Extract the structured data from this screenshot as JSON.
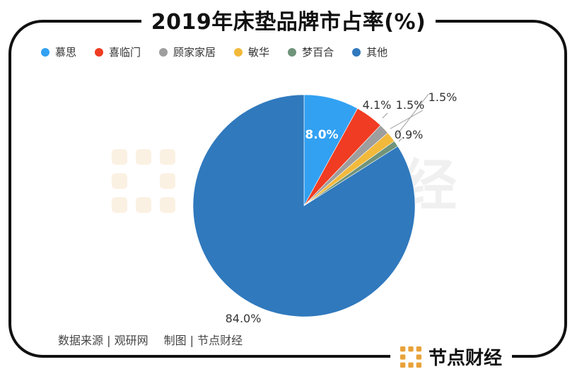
{
  "title": "2019年床垫品牌市占率(%)",
  "legend": [
    {
      "name": "慕思",
      "color": "#32a1f2"
    },
    {
      "name": "喜临门",
      "color": "#f03c22"
    },
    {
      "name": "顾家家居",
      "color": "#9e9e9e"
    },
    {
      "name": "敏华",
      "color": "#f2b93b"
    },
    {
      "name": "梦百合",
      "color": "#70947a"
    },
    {
      "name": "其他",
      "color": "#3079bd"
    }
  ],
  "source": "数据来源 | 观研网",
  "credit": "制图 | 节点财经",
  "brand": "节点财经",
  "watermark": "经",
  "chart_data": {
    "type": "pie",
    "categories": [
      "慕思",
      "喜临门",
      "顾家家居",
      "敏华",
      "梦百合",
      "其他"
    ],
    "values": [
      8.0,
      4.1,
      1.5,
      1.5,
      0.9,
      84.0
    ],
    "labels": [
      "8.0%",
      "4.1%",
      "1.5%",
      "1.5%",
      "0.9%",
      "84.0%"
    ],
    "colors": [
      "#32a1f2",
      "#f03c22",
      "#9e9e9e",
      "#f2b93b",
      "#70947a",
      "#3079bd"
    ],
    "title": "2019年床垫品牌市占率(%)",
    "legend_position": "top-left"
  }
}
